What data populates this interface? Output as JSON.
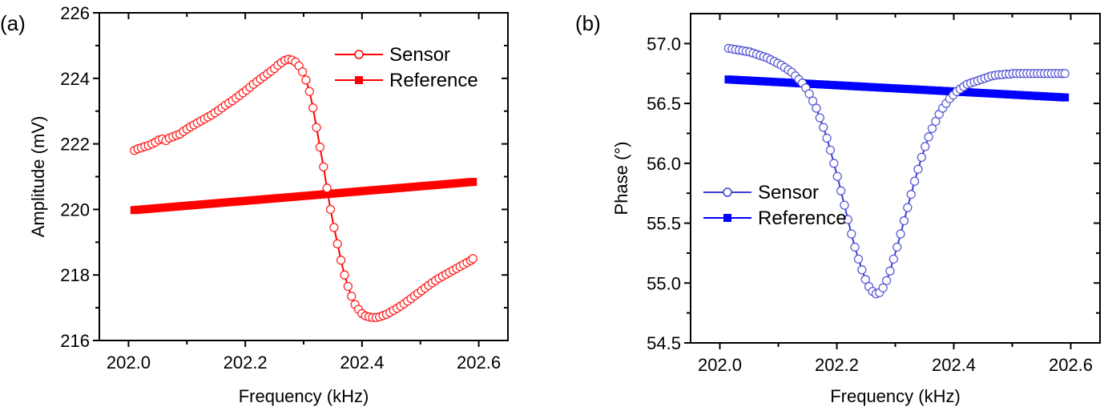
{
  "chart_data": [
    {
      "type": "line",
      "panel_label": "(a)",
      "title": "",
      "xlabel": "Frequency (kHz)",
      "ylabel": "Amplitude (mV)",
      "xlim": [
        201.95,
        202.65
      ],
      "ylim": [
        216,
        226
      ],
      "xticks": [
        202.0,
        202.2,
        202.4,
        202.6
      ],
      "xtick_labels": [
        "202.0",
        "202.2",
        "202.4",
        "202.6"
      ],
      "yticks": [
        216,
        218,
        220,
        222,
        224,
        226
      ],
      "ytick_labels": [
        "216",
        "218",
        "220",
        "222",
        "224",
        "226"
      ],
      "grid": false,
      "legend_position": "top-right",
      "color": "#ff0000",
      "series": [
        {
          "name": "Sensor",
          "marker": "open-circle",
          "x": [
            202.01,
            202.016,
            202.022,
            202.028,
            202.034,
            202.04,
            202.046,
            202.052,
            202.058,
            202.064,
            202.07,
            202.076,
            202.082,
            202.088,
            202.094,
            202.1,
            202.106,
            202.112,
            202.118,
            202.124,
            202.13,
            202.136,
            202.142,
            202.148,
            202.154,
            202.16,
            202.166,
            202.172,
            202.178,
            202.184,
            202.19,
            202.196,
            202.202,
            202.208,
            202.214,
            202.22,
            202.226,
            202.232,
            202.238,
            202.244,
            202.25,
            202.256,
            202.262,
            202.268,
            202.274,
            202.28,
            202.286,
            202.292,
            202.298,
            202.304,
            202.31,
            202.316,
            202.322,
            202.328,
            202.334,
            202.34,
            202.346,
            202.352,
            202.358,
            202.364,
            202.37,
            202.376,
            202.382,
            202.388,
            202.394,
            202.4,
            202.406,
            202.412,
            202.418,
            202.424,
            202.43,
            202.436,
            202.442,
            202.448,
            202.454,
            202.46,
            202.466,
            202.472,
            202.478,
            202.484,
            202.49,
            202.496,
            202.502,
            202.508,
            202.514,
            202.52,
            202.526,
            202.532,
            202.538,
            202.544,
            202.55,
            202.556,
            202.562,
            202.568,
            202.574,
            202.58,
            202.586,
            202.59
          ],
          "y": [
            221.8,
            221.85,
            221.88,
            221.92,
            221.95,
            222.0,
            222.05,
            222.12,
            222.15,
            222.1,
            222.18,
            222.22,
            222.26,
            222.3,
            222.38,
            222.45,
            222.52,
            222.58,
            222.64,
            222.7,
            222.76,
            222.82,
            222.88,
            222.95,
            223.02,
            223.1,
            223.18,
            223.25,
            223.32,
            223.4,
            223.48,
            223.56,
            223.64,
            223.73,
            223.82,
            223.9,
            223.98,
            224.06,
            224.14,
            224.22,
            224.3,
            224.4,
            224.48,
            224.55,
            224.58,
            224.56,
            224.5,
            224.38,
            224.2,
            223.95,
            223.6,
            223.1,
            222.5,
            221.9,
            221.3,
            220.65,
            220.0,
            219.45,
            218.95,
            218.45,
            218.0,
            217.65,
            217.35,
            217.1,
            216.95,
            216.82,
            216.75,
            216.72,
            216.7,
            216.7,
            216.72,
            216.76,
            216.8,
            216.86,
            216.92,
            216.98,
            217.05,
            217.12,
            217.2,
            217.28,
            217.36,
            217.44,
            217.52,
            217.6,
            217.68,
            217.76,
            217.83,
            217.9,
            217.96,
            218.02,
            218.08,
            218.14,
            218.2,
            218.26,
            218.32,
            218.38,
            218.44,
            218.5
          ]
        },
        {
          "name": "Reference",
          "marker": "filled-square",
          "x": [
            202.01,
            202.59
          ],
          "y": [
            219.98,
            220.84
          ]
        }
      ]
    },
    {
      "type": "line",
      "panel_label": "(b)",
      "title": "",
      "xlabel": "Frequency (kHz)",
      "ylabel": "Phase (°)",
      "xlim": [
        201.95,
        202.65
      ],
      "ylim": [
        54.5,
        57.25
      ],
      "xticks": [
        202.0,
        202.2,
        202.4,
        202.6
      ],
      "xtick_labels": [
        "202.0",
        "202.2",
        "202.4",
        "202.6"
      ],
      "yticks": [
        54.5,
        55.0,
        55.5,
        56.0,
        56.5,
        57.0
      ],
      "ytick_labels": [
        "54.5",
        "55.0",
        "55.5",
        "56.0",
        "56.5",
        "57.0"
      ],
      "grid": false,
      "legend_position": "center-left",
      "color": "#0000ff",
      "sensor_color": "#3f3fcf",
      "series": [
        {
          "name": "Sensor",
          "marker": "open-circle",
          "x": [
            202.015,
            202.021,
            202.027,
            202.033,
            202.039,
            202.045,
            202.051,
            202.057,
            202.063,
            202.069,
            202.075,
            202.081,
            202.087,
            202.093,
            202.099,
            202.105,
            202.111,
            202.117,
            202.123,
            202.129,
            202.135,
            202.141,
            202.147,
            202.153,
            202.159,
            202.165,
            202.171,
            202.177,
            202.183,
            202.189,
            202.195,
            202.201,
            202.207,
            202.213,
            202.219,
            202.225,
            202.231,
            202.237,
            202.243,
            202.249,
            202.255,
            202.261,
            202.267,
            202.273,
            202.279,
            202.285,
            202.291,
            202.297,
            202.303,
            202.309,
            202.315,
            202.321,
            202.327,
            202.333,
            202.339,
            202.345,
            202.351,
            202.357,
            202.363,
            202.369,
            202.375,
            202.381,
            202.387,
            202.393,
            202.399,
            202.405,
            202.411,
            202.417,
            202.423,
            202.429,
            202.435,
            202.441,
            202.447,
            202.453,
            202.459,
            202.465,
            202.471,
            202.477,
            202.483,
            202.489,
            202.495,
            202.501,
            202.507,
            202.513,
            202.519,
            202.525,
            202.531,
            202.537,
            202.543,
            202.549,
            202.555,
            202.561,
            202.567,
            202.573,
            202.579,
            202.585,
            202.59
          ],
          "y": [
            56.96,
            56.955,
            56.95,
            56.945,
            56.94,
            56.935,
            56.93,
            56.92,
            56.91,
            56.9,
            56.89,
            56.88,
            56.865,
            56.85,
            56.835,
            56.82,
            56.8,
            56.78,
            56.76,
            56.73,
            56.7,
            56.67,
            56.63,
            56.58,
            56.52,
            56.46,
            56.38,
            56.3,
            56.21,
            56.11,
            56.0,
            55.89,
            55.77,
            55.65,
            55.53,
            55.41,
            55.3,
            55.2,
            55.11,
            55.03,
            54.97,
            54.93,
            54.91,
            54.92,
            54.96,
            55.02,
            55.1,
            55.2,
            55.3,
            55.41,
            55.52,
            55.63,
            55.74,
            55.85,
            55.95,
            56.05,
            56.14,
            56.22,
            56.29,
            56.35,
            56.41,
            56.46,
            56.5,
            56.54,
            56.57,
            56.6,
            56.62,
            56.64,
            56.66,
            56.67,
            56.68,
            56.69,
            56.7,
            56.71,
            56.72,
            56.73,
            56.735,
            56.74,
            56.74,
            56.745,
            56.745,
            56.75,
            56.75,
            56.75,
            56.75,
            56.75,
            56.75,
            56.75,
            56.75,
            56.75,
            56.75,
            56.75,
            56.75,
            56.75,
            56.75,
            56.75,
            56.75
          ]
        },
        {
          "name": "Reference",
          "marker": "filled-square",
          "x": [
            202.015,
            202.59
          ],
          "y": [
            56.7,
            56.55
          ]
        }
      ]
    }
  ]
}
